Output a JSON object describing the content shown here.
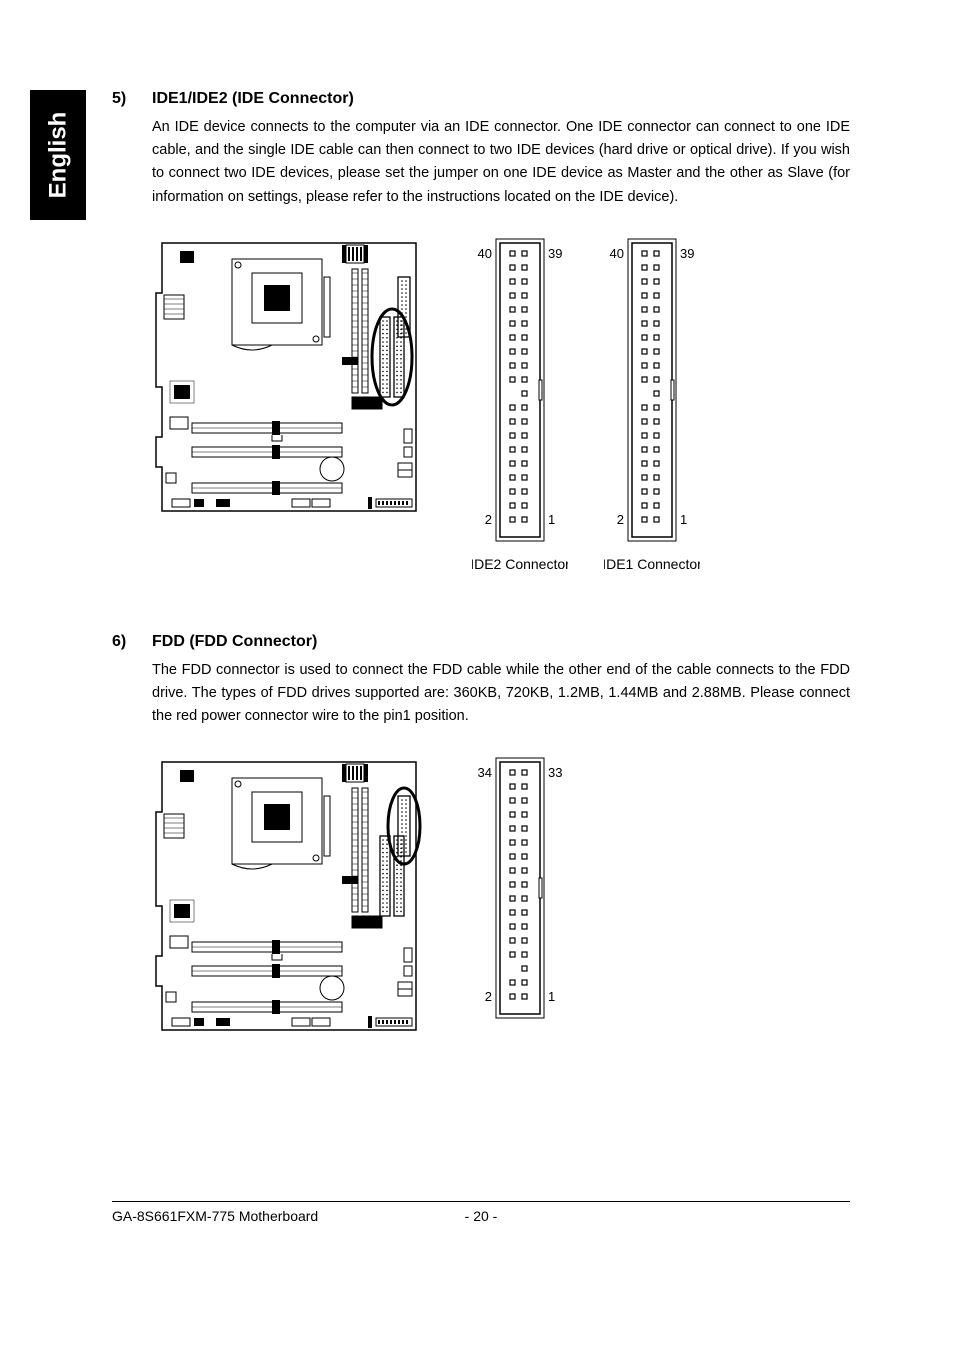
{
  "sidebar_label": "English",
  "section5": {
    "num": "5)",
    "title": "IDE1/IDE2  (IDE Connector)",
    "body": "An IDE device connects to the computer via an IDE connector. One IDE connector can connect to one IDE cable, and the single IDE cable can then connect to two IDE devices (hard drive or optical drive).  If you wish to connect two IDE devices, please set the jumper on one IDE device as Master and the other as Slave (for information on settings, please refer to the instructions located on the IDE device)."
  },
  "section6": {
    "num": "6)",
    "title": "FDD (FDD Connector)",
    "body": "The FDD connector is used to connect the FDD cable while the other end of the cable connects to the FDD drive. The types of FDD drives supported are: 360KB, 720KB, 1.2MB, 1.44MB and 2.88MB. Please connect the red power connector wire to the pin1 position."
  },
  "ide": {
    "pin_rows": 20,
    "missing_row_index": 10,
    "labels": {
      "tl": "40",
      "tr": "39",
      "bl": "2",
      "br": "1"
    },
    "caption1": "IDE2 Connector",
    "caption2": "IDE1 Connector",
    "colors": {
      "stroke": "#000000",
      "bg": "#ffffff"
    },
    "pin_size": 5,
    "col_gap": 12,
    "row_gap": 14
  },
  "fdd": {
    "pin_rows": 17,
    "missing_row_index": 14,
    "labels": {
      "tl": "34",
      "tr": "33",
      "bl": "2",
      "br": "1"
    },
    "colors": {
      "stroke": "#000000",
      "bg": "#ffffff"
    },
    "pin_size": 5,
    "col_gap": 12,
    "row_gap": 14
  },
  "motherboard": {
    "colors": {
      "stroke": "#000000",
      "fill": "#ffffff",
      "dark": "#000000"
    }
  },
  "footer": {
    "name": "GA-8S661FXM-775 Motherboard",
    "page": "- 20 -"
  }
}
